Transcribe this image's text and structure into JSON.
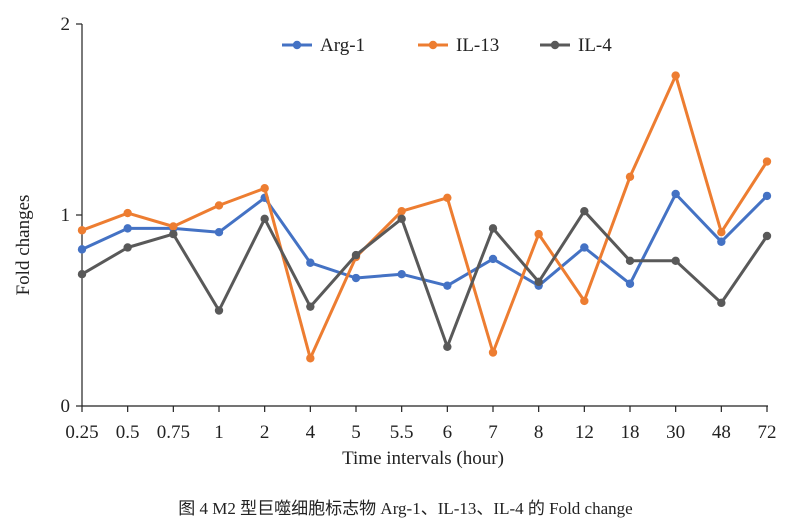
{
  "chart_data": {
    "type": "line",
    "title": "",
    "xlabel": "Time intervals (hour)",
    "ylabel": "Fold changes",
    "categories": [
      "0.25",
      "0.5",
      "0.75",
      "1",
      "2",
      "4",
      "5",
      "5.5",
      "6",
      "7",
      "8",
      "12",
      "18",
      "30",
      "48",
      "72"
    ],
    "ylim": [
      0,
      2
    ],
    "yticks": [
      "0",
      "1",
      "2"
    ],
    "legend_position": "top",
    "series": [
      {
        "name": "Arg-1",
        "color": "#4472C4",
        "values": [
          0.82,
          0.93,
          0.93,
          0.91,
          1.09,
          0.75,
          0.67,
          0.69,
          0.63,
          0.77,
          0.63,
          0.83,
          0.64,
          1.11,
          0.86,
          1.1
        ]
      },
      {
        "name": "IL-13",
        "color": "#ED7D31",
        "values": [
          0.92,
          1.01,
          0.94,
          1.05,
          1.14,
          0.25,
          0.78,
          1.02,
          1.09,
          0.28,
          0.9,
          0.55,
          1.2,
          1.73,
          0.91,
          1.28
        ]
      },
      {
        "name": "IL-4",
        "color": "#595959",
        "values": [
          0.69,
          0.83,
          0.9,
          0.5,
          0.98,
          0.52,
          0.79,
          0.98,
          0.31,
          0.93,
          0.65,
          1.02,
          0.76,
          0.76,
          0.54,
          0.89
        ]
      }
    ]
  },
  "caption": "图 4 M2 型巨噬细胞标志物 Arg-1、IL-13、IL-4 的 Fold change"
}
